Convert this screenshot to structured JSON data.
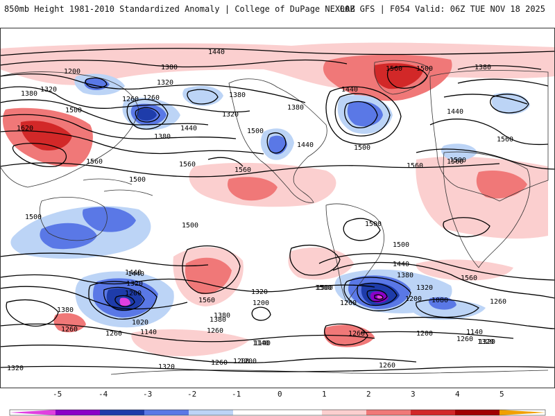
{
  "header": {
    "title_left": "850mb Height 1981-2010 Standardized Anomaly | College of DuPage NEXLAB",
    "title_right": "00Z GFS | F054 Valid: 06Z TUE NOV 18 2025"
  },
  "colors": {
    "neg5": "#e040e0",
    "neg4": "#8a00c8",
    "neg3": "#1e3caa",
    "neg2": "#5a78e6",
    "neg1": "#bcd4f6",
    "zero": "#ffffff",
    "pos1": "#fbcfcf",
    "pos2": "#f07878",
    "pos3": "#d22828",
    "pos4": "#a00000",
    "pos5": "#f0a000",
    "contour": "#000000",
    "border": "#333333"
  },
  "colorbar": {
    "ticks": [
      "-5",
      "-4",
      "-3",
      "-2",
      "-1",
      "0",
      "1",
      "2",
      "3",
      "4",
      "5"
    ]
  },
  "contour_labels": [
    "1440",
    "1380",
    "1200",
    "1320",
    "1380",
    "1320",
    "1260",
    "1500",
    "1260",
    "1380",
    "1560",
    "1500",
    "1440",
    "1380",
    "1440",
    "1320",
    "1500",
    "1380",
    "1620",
    "1440",
    "1380",
    "1560",
    "1500",
    "1560",
    "1560",
    "1500",
    "1560",
    "1440",
    "1500",
    "1500",
    "1560",
    "1500",
    "1500",
    "1500",
    "1440",
    "1320",
    "1200",
    "1020",
    "1140",
    "1260",
    "1380",
    "1320",
    "1200",
    "1380",
    "1260",
    "1140",
    "1320",
    "1200",
    "1440",
    "1380",
    "1320",
    "1200",
    "1080",
    "1260",
    "1140",
    "1260",
    "1320",
    "1260",
    "1560",
    "1500",
    "1260",
    "1200",
    "1320",
    "1320",
    "1260",
    "1200",
    "1260",
    "1140",
    "1260",
    "1560",
    "1380",
    "1440",
    "1560",
    "1500"
  ]
}
